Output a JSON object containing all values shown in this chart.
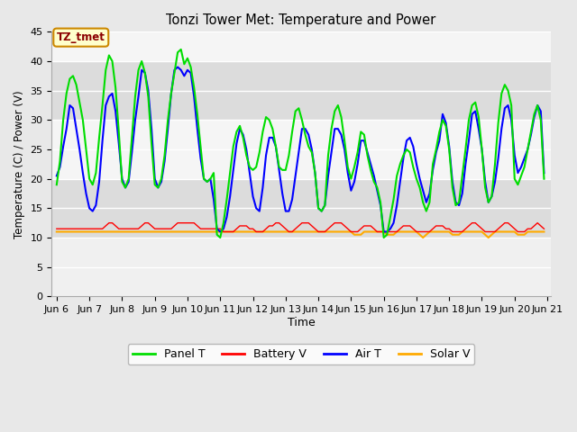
{
  "title": "Tonzi Tower Met: Temperature and Power",
  "xlabel": "Time",
  "ylabel": "Temperature (C) / Power (V)",
  "ylim": [
    0,
    45
  ],
  "yticks": [
    0,
    5,
    10,
    15,
    20,
    25,
    30,
    35,
    40,
    45
  ],
  "xlim_start": 5.85,
  "xlim_end": 21.1,
  "xtick_labels": [
    "Jun 6",
    "Jun 7",
    "Jun 8",
    "Jun 9",
    "Jun 10",
    "Jun 11",
    "Jun 12",
    "Jun 13",
    "Jun 14",
    "Jun 15",
    "Jun 16",
    "Jun 17",
    "Jun 18",
    "Jun 19",
    "Jun 20",
    "Jun 21"
  ],
  "xtick_positions": [
    6,
    7,
    8,
    9,
    10,
    11,
    12,
    13,
    14,
    15,
    16,
    17,
    18,
    19,
    20,
    21
  ],
  "annotation_text": "TZ_tmet",
  "bg_color": "#ffffff",
  "plot_bg_light": "#f0f0f0",
  "plot_bg_dark": "#dcdcdc",
  "colors": {
    "panel_t": "#00dd00",
    "battery_v": "#ff0000",
    "air_t": "#0000ff",
    "solar_v": "#ffaa00"
  },
  "panel_t_x": [
    6.0,
    6.1,
    6.2,
    6.3,
    6.4,
    6.5,
    6.6,
    6.7,
    6.8,
    6.9,
    7.0,
    7.1,
    7.2,
    7.3,
    7.4,
    7.5,
    7.6,
    7.7,
    7.8,
    7.9,
    8.0,
    8.1,
    8.2,
    8.3,
    8.4,
    8.5,
    8.6,
    8.7,
    8.8,
    8.9,
    9.0,
    9.1,
    9.2,
    9.3,
    9.4,
    9.5,
    9.6,
    9.7,
    9.8,
    9.9,
    10.0,
    10.1,
    10.2,
    10.3,
    10.4,
    10.5,
    10.6,
    10.7,
    10.8,
    10.9,
    11.0,
    11.1,
    11.2,
    11.3,
    11.4,
    11.5,
    11.6,
    11.7,
    11.8,
    11.9,
    12.0,
    12.1,
    12.2,
    12.3,
    12.4,
    12.5,
    12.6,
    12.7,
    12.8,
    12.9,
    13.0,
    13.1,
    13.2,
    13.3,
    13.4,
    13.5,
    13.6,
    13.7,
    13.8,
    13.9,
    14.0,
    14.1,
    14.2,
    14.3,
    14.4,
    14.5,
    14.6,
    14.7,
    14.8,
    14.9,
    15.0,
    15.1,
    15.2,
    15.3,
    15.4,
    15.5,
    15.6,
    15.7,
    15.8,
    15.9,
    16.0,
    16.1,
    16.2,
    16.3,
    16.4,
    16.5,
    16.6,
    16.7,
    16.8,
    16.9,
    17.0,
    17.1,
    17.2,
    17.3,
    17.4,
    17.5,
    17.6,
    17.7,
    17.8,
    17.9,
    18.0,
    18.1,
    18.2,
    18.3,
    18.4,
    18.5,
    18.6,
    18.7,
    18.8,
    18.9,
    19.0,
    19.1,
    19.2,
    19.3,
    19.4,
    19.5,
    19.6,
    19.7,
    19.8,
    19.9,
    20.0,
    20.1,
    20.2,
    20.3,
    20.4,
    20.5,
    20.6,
    20.7,
    20.8,
    20.9
  ],
  "panel_t_y": [
    19.0,
    23.0,
    30.0,
    34.5,
    37.0,
    37.5,
    36.0,
    33.0,
    30.0,
    25.0,
    20.0,
    19.0,
    21.0,
    27.0,
    32.5,
    38.5,
    41.0,
    40.0,
    35.5,
    28.0,
    19.5,
    18.5,
    20.0,
    27.0,
    34.0,
    38.5,
    40.0,
    38.0,
    34.0,
    26.0,
    19.0,
    18.5,
    20.0,
    24.0,
    30.0,
    34.5,
    38.0,
    41.5,
    42.0,
    39.5,
    40.5,
    39.0,
    35.5,
    31.0,
    25.5,
    20.0,
    19.5,
    20.0,
    21.0,
    10.5,
    10.0,
    12.5,
    16.5,
    21.0,
    25.5,
    28.0,
    29.0,
    27.0,
    24.0,
    22.0,
    21.5,
    22.0,
    24.5,
    28.0,
    30.5,
    30.0,
    28.5,
    25.5,
    22.0,
    21.5,
    21.5,
    24.0,
    28.0,
    31.5,
    32.0,
    30.0,
    27.5,
    25.5,
    24.5,
    21.0,
    15.0,
    14.5,
    15.5,
    24.0,
    28.5,
    31.5,
    32.5,
    30.5,
    26.5,
    22.0,
    20.0,
    22.0,
    24.5,
    28.0,
    27.5,
    24.0,
    21.5,
    19.5,
    18.5,
    16.0,
    10.0,
    10.5,
    13.5,
    16.5,
    20.5,
    22.5,
    24.0,
    25.0,
    24.5,
    22.0,
    20.0,
    18.5,
    16.0,
    14.5,
    16.0,
    22.5,
    25.0,
    28.0,
    30.0,
    29.0,
    25.0,
    18.5,
    15.5,
    16.0,
    20.5,
    25.0,
    30.0,
    32.5,
    33.0,
    30.5,
    25.0,
    18.5,
    16.0,
    17.0,
    22.5,
    29.5,
    34.5,
    36.0,
    35.0,
    32.5,
    20.0,
    19.0,
    20.5,
    22.0,
    25.0,
    28.0,
    31.0,
    32.5,
    30.0,
    20.0
  ],
  "air_t_x": [
    6.0,
    6.1,
    6.2,
    6.3,
    6.4,
    6.5,
    6.6,
    6.7,
    6.8,
    6.9,
    7.0,
    7.1,
    7.2,
    7.3,
    7.4,
    7.5,
    7.6,
    7.7,
    7.8,
    7.9,
    8.0,
    8.1,
    8.2,
    8.3,
    8.4,
    8.5,
    8.6,
    8.7,
    8.8,
    8.9,
    9.0,
    9.1,
    9.2,
    9.3,
    9.4,
    9.5,
    9.6,
    9.7,
    9.8,
    9.9,
    10.0,
    10.1,
    10.2,
    10.3,
    10.4,
    10.5,
    10.6,
    10.7,
    10.8,
    10.9,
    11.0,
    11.1,
    11.2,
    11.3,
    11.4,
    11.5,
    11.6,
    11.7,
    11.8,
    11.9,
    12.0,
    12.1,
    12.2,
    12.3,
    12.4,
    12.5,
    12.6,
    12.7,
    12.8,
    12.9,
    13.0,
    13.1,
    13.2,
    13.3,
    13.4,
    13.5,
    13.6,
    13.7,
    13.8,
    13.9,
    14.0,
    14.1,
    14.2,
    14.3,
    14.4,
    14.5,
    14.6,
    14.7,
    14.8,
    14.9,
    15.0,
    15.1,
    15.2,
    15.3,
    15.4,
    15.5,
    15.6,
    15.7,
    15.8,
    15.9,
    16.0,
    16.1,
    16.2,
    16.3,
    16.4,
    16.5,
    16.6,
    16.7,
    16.8,
    16.9,
    17.0,
    17.1,
    17.2,
    17.3,
    17.4,
    17.5,
    17.6,
    17.7,
    17.8,
    17.9,
    18.0,
    18.1,
    18.2,
    18.3,
    18.4,
    18.5,
    18.6,
    18.7,
    18.8,
    18.9,
    19.0,
    19.1,
    19.2,
    19.3,
    19.4,
    19.5,
    19.6,
    19.7,
    19.8,
    19.9,
    20.0,
    20.1,
    20.2,
    20.3,
    20.4,
    20.5,
    20.6,
    20.7,
    20.8,
    20.9
  ],
  "air_t_y": [
    20.5,
    22.0,
    25.5,
    28.5,
    32.5,
    32.0,
    28.5,
    25.0,
    21.0,
    17.5,
    15.0,
    14.5,
    15.5,
    19.5,
    26.5,
    32.5,
    34.0,
    34.5,
    31.5,
    26.0,
    20.0,
    18.5,
    19.5,
    24.5,
    30.0,
    34.0,
    38.5,
    38.0,
    35.0,
    28.5,
    20.0,
    18.5,
    19.5,
    23.0,
    28.5,
    34.5,
    38.5,
    39.0,
    38.5,
    37.5,
    38.5,
    38.0,
    34.0,
    28.5,
    23.5,
    20.0,
    19.5,
    20.0,
    16.5,
    11.5,
    11.0,
    11.5,
    13.5,
    17.0,
    21.5,
    26.0,
    28.5,
    27.5,
    25.0,
    21.0,
    17.0,
    15.0,
    14.5,
    18.5,
    24.0,
    27.0,
    27.0,
    25.5,
    21.5,
    17.5,
    14.5,
    14.5,
    16.5,
    20.5,
    24.5,
    28.5,
    28.5,
    27.5,
    25.0,
    21.0,
    15.0,
    14.5,
    15.5,
    20.5,
    24.5,
    28.5,
    28.5,
    27.5,
    25.0,
    21.0,
    18.0,
    19.5,
    22.5,
    26.5,
    26.5,
    24.5,
    22.5,
    20.5,
    18.0,
    15.5,
    11.0,
    11.0,
    11.5,
    12.5,
    15.5,
    19.5,
    23.5,
    26.5,
    27.0,
    25.5,
    22.5,
    20.0,
    18.0,
    16.0,
    17.5,
    21.5,
    24.5,
    26.5,
    31.0,
    29.5,
    25.5,
    19.5,
    16.0,
    15.5,
    17.5,
    22.5,
    26.5,
    31.0,
    31.5,
    28.5,
    25.0,
    19.5,
    16.0,
    17.0,
    19.5,
    23.5,
    28.5,
    32.0,
    32.5,
    30.0,
    24.0,
    21.0,
    22.0,
    23.5,
    25.0,
    27.5,
    30.5,
    32.5,
    31.5,
    21.0
  ],
  "battery_v_x": [
    6.0,
    6.1,
    6.2,
    6.3,
    6.4,
    6.5,
    6.6,
    6.7,
    6.8,
    6.9,
    7.0,
    7.1,
    7.2,
    7.3,
    7.4,
    7.5,
    7.6,
    7.7,
    7.8,
    7.9,
    8.0,
    8.1,
    8.2,
    8.3,
    8.4,
    8.5,
    8.6,
    8.7,
    8.8,
    8.9,
    9.0,
    9.1,
    9.2,
    9.3,
    9.4,
    9.5,
    9.6,
    9.7,
    9.8,
    9.9,
    10.0,
    10.1,
    10.2,
    10.3,
    10.4,
    10.5,
    10.6,
    10.7,
    10.8,
    10.9,
    11.0,
    11.1,
    11.2,
    11.3,
    11.4,
    11.5,
    11.6,
    11.7,
    11.8,
    11.9,
    12.0,
    12.1,
    12.2,
    12.3,
    12.4,
    12.5,
    12.6,
    12.7,
    12.8,
    12.9,
    13.0,
    13.1,
    13.2,
    13.3,
    13.4,
    13.5,
    13.6,
    13.7,
    13.8,
    13.9,
    14.0,
    14.1,
    14.2,
    14.3,
    14.4,
    14.5,
    14.6,
    14.7,
    14.8,
    14.9,
    15.0,
    15.1,
    15.2,
    15.3,
    15.4,
    15.5,
    15.6,
    15.7,
    15.8,
    15.9,
    16.0,
    16.1,
    16.2,
    16.3,
    16.4,
    16.5,
    16.6,
    16.7,
    16.8,
    16.9,
    17.0,
    17.1,
    17.2,
    17.3,
    17.4,
    17.5,
    17.6,
    17.7,
    17.8,
    17.9,
    18.0,
    18.1,
    18.2,
    18.3,
    18.4,
    18.5,
    18.6,
    18.7,
    18.8,
    18.9,
    19.0,
    19.1,
    19.2,
    19.3,
    19.4,
    19.5,
    19.6,
    19.7,
    19.8,
    19.9,
    20.0,
    20.1,
    20.2,
    20.3,
    20.4,
    20.5,
    20.6,
    20.7,
    20.8,
    20.9
  ],
  "battery_v_y": [
    11.5,
    11.5,
    11.5,
    11.5,
    11.5,
    11.5,
    11.5,
    11.5,
    11.5,
    11.5,
    11.5,
    11.5,
    11.5,
    11.5,
    11.5,
    12.0,
    12.5,
    12.5,
    12.0,
    11.5,
    11.5,
    11.5,
    11.5,
    11.5,
    11.5,
    11.5,
    12.0,
    12.5,
    12.5,
    12.0,
    11.5,
    11.5,
    11.5,
    11.5,
    11.5,
    11.5,
    12.0,
    12.5,
    12.5,
    12.5,
    12.5,
    12.5,
    12.5,
    12.0,
    11.5,
    11.5,
    11.5,
    11.5,
    11.5,
    11.5,
    11.5,
    11.0,
    11.0,
    11.0,
    11.0,
    11.5,
    12.0,
    12.0,
    12.0,
    11.5,
    11.5,
    11.0,
    11.0,
    11.0,
    11.5,
    12.0,
    12.0,
    12.5,
    12.5,
    12.0,
    11.5,
    11.0,
    11.0,
    11.5,
    12.0,
    12.5,
    12.5,
    12.5,
    12.0,
    11.5,
    11.0,
    11.0,
    11.0,
    11.5,
    12.0,
    12.5,
    12.5,
    12.5,
    12.0,
    11.5,
    11.0,
    11.0,
    11.0,
    11.5,
    12.0,
    12.0,
    12.0,
    11.5,
    11.0,
    11.0,
    11.0,
    11.0,
    11.0,
    11.0,
    11.0,
    11.5,
    12.0,
    12.0,
    12.0,
    11.5,
    11.0,
    11.0,
    11.0,
    11.0,
    11.0,
    11.5,
    12.0,
    12.0,
    12.0,
    11.5,
    11.5,
    11.0,
    11.0,
    11.0,
    11.0,
    11.5,
    12.0,
    12.5,
    12.5,
    12.0,
    11.5,
    11.0,
    11.0,
    11.0,
    11.0,
    11.5,
    12.0,
    12.5,
    12.5,
    12.0,
    11.5,
    11.0,
    11.0,
    11.0,
    11.5,
    11.5,
    12.0,
    12.5,
    12.0,
    11.5
  ],
  "solar_v_x": [
    6.0,
    6.1,
    6.2,
    6.3,
    6.4,
    6.5,
    6.6,
    6.7,
    6.8,
    6.9,
    7.0,
    7.1,
    7.2,
    7.3,
    7.4,
    7.5,
    7.6,
    7.7,
    7.8,
    7.9,
    8.0,
    8.1,
    8.2,
    8.3,
    8.4,
    8.5,
    8.6,
    8.7,
    8.8,
    8.9,
    9.0,
    9.1,
    9.2,
    9.3,
    9.4,
    9.5,
    9.6,
    9.7,
    9.8,
    9.9,
    10.0,
    10.1,
    10.2,
    10.3,
    10.4,
    10.5,
    10.6,
    10.7,
    10.8,
    10.9,
    11.0,
    11.1,
    11.2,
    11.3,
    11.4,
    11.5,
    11.6,
    11.7,
    11.8,
    11.9,
    12.0,
    12.1,
    12.2,
    12.3,
    12.4,
    12.5,
    12.6,
    12.7,
    12.8,
    12.9,
    13.0,
    13.1,
    13.2,
    13.3,
    13.4,
    13.5,
    13.6,
    13.7,
    13.8,
    13.9,
    14.0,
    14.1,
    14.2,
    14.3,
    14.4,
    14.5,
    14.6,
    14.7,
    14.8,
    14.9,
    15.0,
    15.1,
    15.2,
    15.3,
    15.4,
    15.5,
    15.6,
    15.7,
    15.8,
    15.9,
    16.0,
    16.1,
    16.2,
    16.3,
    16.4,
    16.5,
    16.6,
    16.7,
    16.8,
    16.9,
    17.0,
    17.1,
    17.2,
    17.3,
    17.4,
    17.5,
    17.6,
    17.7,
    17.8,
    17.9,
    18.0,
    18.1,
    18.2,
    18.3,
    18.4,
    18.5,
    18.6,
    18.7,
    18.8,
    18.9,
    19.0,
    19.1,
    19.2,
    19.3,
    19.4,
    19.5,
    19.6,
    19.7,
    19.8,
    19.9,
    20.0,
    20.1,
    20.2,
    20.3,
    20.4,
    20.5,
    20.6,
    20.7,
    20.8,
    20.9
  ],
  "solar_v_y": [
    11.0,
    11.0,
    11.0,
    11.0,
    11.0,
    11.0,
    11.0,
    11.0,
    11.0,
    11.0,
    11.0,
    11.0,
    11.0,
    11.0,
    11.0,
    11.0,
    11.0,
    11.0,
    11.0,
    11.0,
    11.0,
    11.0,
    11.0,
    11.0,
    11.0,
    11.0,
    11.0,
    11.0,
    11.0,
    11.0,
    11.0,
    11.0,
    11.0,
    11.0,
    11.0,
    11.0,
    11.0,
    11.0,
    11.0,
    11.0,
    11.0,
    11.0,
    11.0,
    11.0,
    11.0,
    11.0,
    11.0,
    11.0,
    11.0,
    11.0,
    11.0,
    11.0,
    11.0,
    11.0,
    11.0,
    11.0,
    11.0,
    11.0,
    11.0,
    11.0,
    11.0,
    11.0,
    11.0,
    11.0,
    11.0,
    11.0,
    11.0,
    11.0,
    11.0,
    11.0,
    11.0,
    11.0,
    11.0,
    11.0,
    11.0,
    11.0,
    11.0,
    11.0,
    11.0,
    11.0,
    11.0,
    11.0,
    11.0,
    11.0,
    11.0,
    11.0,
    11.0,
    11.0,
    11.0,
    11.0,
    11.0,
    10.5,
    10.5,
    10.5,
    11.0,
    11.0,
    11.0,
    11.0,
    11.0,
    11.0,
    11.0,
    10.5,
    10.5,
    10.5,
    11.0,
    11.0,
    11.0,
    11.0,
    11.0,
    11.0,
    11.0,
    10.5,
    10.0,
    10.5,
    11.0,
    11.0,
    11.0,
    11.0,
    11.0,
    11.0,
    11.0,
    10.5,
    10.5,
    10.5,
    11.0,
    11.0,
    11.0,
    11.0,
    11.0,
    11.0,
    11.0,
    10.5,
    10.0,
    10.5,
    11.0,
    11.0,
    11.0,
    11.0,
    11.0,
    11.0,
    11.0,
    10.5,
    10.5,
    10.5,
    11.0,
    11.0,
    11.0,
    11.0,
    11.0,
    11.0
  ]
}
